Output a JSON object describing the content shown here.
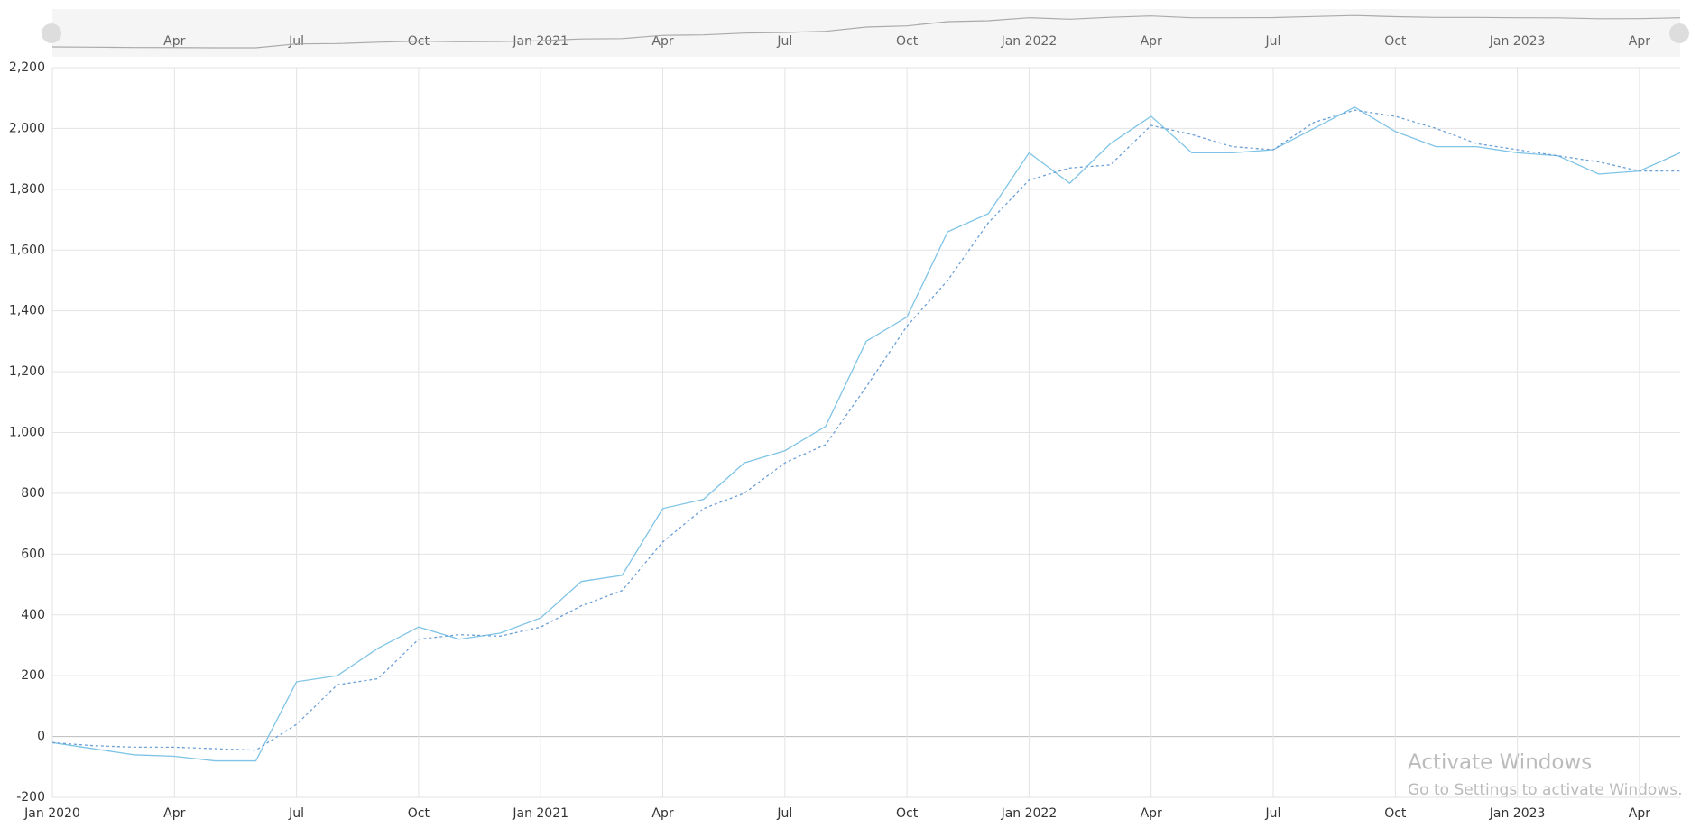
{
  "chart_data": {
    "type": "line",
    "x": [
      "2020-01",
      "2020-02",
      "2020-03",
      "2020-04",
      "2020-05",
      "2020-06",
      "2020-07",
      "2020-08",
      "2020-09",
      "2020-10",
      "2020-11",
      "2020-12",
      "2021-01",
      "2021-02",
      "2021-03",
      "2021-04",
      "2021-05",
      "2021-06",
      "2021-07",
      "2021-08",
      "2021-09",
      "2021-10",
      "2021-11",
      "2021-12",
      "2022-01",
      "2022-02",
      "2022-03",
      "2022-04",
      "2022-05",
      "2022-06",
      "2022-07",
      "2022-08",
      "2022-09",
      "2022-10",
      "2022-11",
      "2022-12",
      "2023-01",
      "2023-02",
      "2023-03",
      "2023-04",
      "2023-05"
    ],
    "series": [
      {
        "color": "#7fc4e6",
        "dash": false,
        "values": [
          -20,
          -40,
          -60,
          -65,
          -80,
          -80,
          180,
          200,
          290,
          360,
          320,
          340,
          390,
          510,
          530,
          750,
          780,
          900,
          940,
          1020,
          1300,
          1380,
          1660,
          1720,
          1920,
          1820,
          1950,
          2040,
          1920,
          1920,
          1930,
          2000,
          2070,
          1990,
          1940,
          1940,
          1920,
          1910,
          1850,
          1860,
          1920
        ]
      },
      {
        "color": "#6b9fd6",
        "dash": true,
        "values": [
          -20,
          -30,
          -35,
          -35,
          -40,
          -45,
          40,
          170,
          190,
          320,
          335,
          330,
          360,
          430,
          480,
          640,
          750,
          800,
          900,
          960,
          1150,
          1350,
          1500,
          1690,
          1830,
          1870,
          1880,
          2010,
          1980,
          1940,
          1930,
          2020,
          2060,
          2040,
          2000,
          1950,
          1930,
          1910,
          1890,
          1860,
          1860
        ]
      }
    ],
    "xlim": [
      "2020-01",
      "2023-05"
    ],
    "xticks": [
      {
        "value": "2020-01",
        "label": "Jan 2020"
      },
      {
        "value": "2020-04",
        "label": "Apr"
      },
      {
        "value": "2020-07",
        "label": "Jul"
      },
      {
        "value": "2020-10",
        "label": "Oct"
      },
      {
        "value": "2021-01",
        "label": "Jan 2021"
      },
      {
        "value": "2021-04",
        "label": "Apr"
      },
      {
        "value": "2021-07",
        "label": "Jul"
      },
      {
        "value": "2021-10",
        "label": "Oct"
      },
      {
        "value": "2022-01",
        "label": "Jan 2022"
      },
      {
        "value": "2022-04",
        "label": "Apr"
      },
      {
        "value": "2022-07",
        "label": "Jul"
      },
      {
        "value": "2022-10",
        "label": "Oct"
      },
      {
        "value": "2023-01",
        "label": "Jan 2023"
      },
      {
        "value": "2023-04",
        "label": "Apr"
      }
    ],
    "ylim": [
      -200,
      2200
    ],
    "yticks": [
      -200,
      0,
      200,
      400,
      600,
      800,
      {
        "value": 1000,
        "label": "1,000"
      },
      {
        "value": 1200,
        "label": "1,200"
      },
      {
        "value": 1400,
        "label": "1,400"
      },
      {
        "value": 1600,
        "label": "1,600"
      },
      {
        "value": 1800,
        "label": "1,800"
      },
      {
        "value": 2000,
        "label": "2,000"
      },
      {
        "value": 2200,
        "label": "2,200"
      }
    ],
    "grid": true,
    "watermark": {
      "title": "Activate Windows",
      "subtitle": "Go to Settings to activate Windows."
    }
  }
}
